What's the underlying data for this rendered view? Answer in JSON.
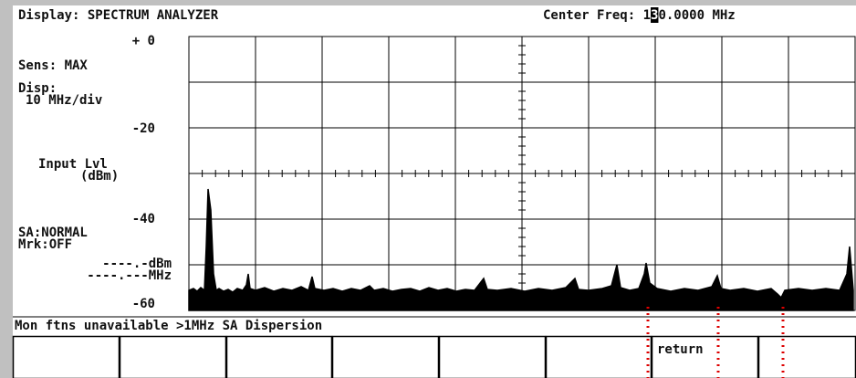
{
  "header": {
    "display": "Display: SPECTRUM ANALYZER",
    "center_freq_prefix": "Center Freq: 1",
    "center_freq_cursor": "3",
    "center_freq_suffix": "0.0000 MHz"
  },
  "left_panel": {
    "top_level": "+ 0",
    "sens": "Sens: MAX",
    "disp_label": "Disp:",
    "disp_value": "10 MHz/div",
    "level_20": "-20",
    "input_lvl": "Input Lvl",
    "units": "(dBm)",
    "level_40": "-40",
    "sa_mode": "SA:NORMAL",
    "marker": "Mrk:OFF",
    "marker_dbm": "----.-dBm",
    "marker_mhz": "----.---MHz",
    "level_60": "-60"
  },
  "status": "Mon ftns unavailable >1MHz SA Dispersion",
  "softkey_return": "return"
}
